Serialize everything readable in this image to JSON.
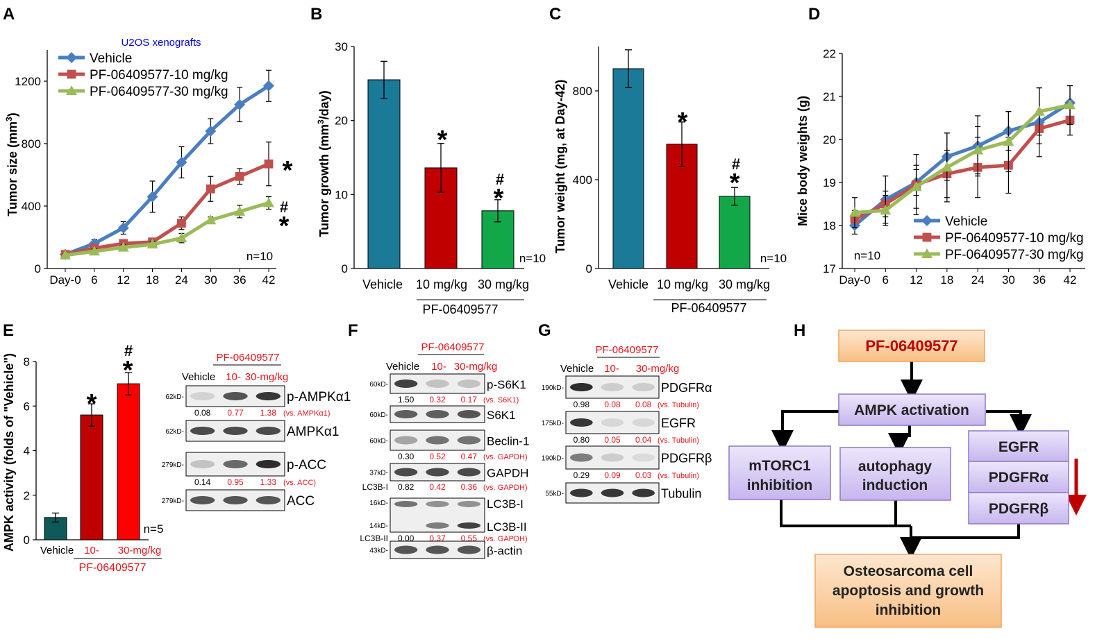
{
  "colors": {
    "vehicle": "#4a7ebf",
    "low": "#c0504d",
    "high": "#9bbb59",
    "bar_vehicle_b": "#1b7a98",
    "bar_low_b": "#c00000",
    "bar_high_b": "#12a84a",
    "bar_vehicle_e": "#0e5a58",
    "bar_low_e": "#c00000",
    "bar_high_e": "#ff0000",
    "purple_box": "#d6c8f2",
    "orange_box": "#fbd1a2",
    "red_text": "#e8141b"
  },
  "chart_data": [
    {
      "panel": "A",
      "type": "line",
      "title": "U2OS xenografts",
      "categories": [
        "Day-0",
        "6",
        "12",
        "18",
        "24",
        "30",
        "36",
        "42"
      ],
      "ylabel": "Tumor size (mm3)",
      "ylim": [
        0,
        1400
      ],
      "yticks": [
        "0",
        "400",
        "800",
        "1200"
      ],
      "series": [
        {
          "name": "Vehicle",
          "values": [
            90,
            160,
            260,
            460,
            680,
            880,
            1050,
            1170
          ],
          "errors": [
            10,
            25,
            40,
            100,
            100,
            80,
            110,
            100
          ]
        },
        {
          "name": "PF-06409577-10 mg/kg",
          "values": [
            90,
            130,
            160,
            170,
            290,
            510,
            590,
            670
          ],
          "errors": [
            10,
            20,
            20,
            20,
            40,
            80,
            50,
            140
          ]
        },
        {
          "name": "PF-06409577-30 mg/kg",
          "values": [
            85,
            110,
            135,
            155,
            195,
            310,
            365,
            420
          ],
          "errors": [
            10,
            15,
            20,
            20,
            30,
            20,
            40,
            40
          ]
        }
      ],
      "annotations": {
        "n": "n=10",
        "sig_low": "*",
        "sig_high_hash": "#",
        "sig_high_star": "*"
      }
    },
    {
      "panel": "B",
      "type": "bar",
      "categories": [
        "Vehicle",
        "10 mg/kg",
        "30 mg/kg"
      ],
      "values": [
        25.5,
        13.6,
        7.8
      ],
      "errors": [
        2.5,
        3.3,
        1.5
      ],
      "ylabel": "Tumor growth (mm3/day)",
      "ylim": [
        0,
        30
      ],
      "yticks": [
        "0",
        "10",
        "20",
        "30"
      ],
      "group_label": "PF-06409577",
      "annotations": {
        "n": "n=10",
        "sig_low": "*",
        "sig_high_star": "*",
        "sig_high_hash": "#"
      }
    },
    {
      "panel": "C",
      "type": "bar",
      "categories": [
        "Vehicle",
        "10 mg/kg",
        "30 mg/kg"
      ],
      "values": [
        900,
        560,
        325
      ],
      "errors": [
        85,
        100,
        40
      ],
      "ylabel": "Tumor weight (mg, at Day-42)",
      "ylim": [
        0,
        1000
      ],
      "yticks": [
        "0",
        "400",
        "800"
      ],
      "group_label": "PF-06409577",
      "annotations": {
        "n": "n=10",
        "sig_low": "*",
        "sig_high_star": "*",
        "sig_high_hash": "#"
      }
    },
    {
      "panel": "D",
      "type": "line",
      "categories": [
        "Day-0",
        "6",
        "12",
        "18",
        "24",
        "30",
        "36",
        "42"
      ],
      "ylabel": "Mice body weights (g)",
      "ylim": [
        17,
        22
      ],
      "yticks": [
        "17",
        "18",
        "19",
        "20",
        "21",
        "22"
      ],
      "series": [
        {
          "name": "Vehicle",
          "values": [
            18.0,
            18.6,
            19.0,
            19.6,
            19.85,
            20.2,
            20.4,
            20.85
          ],
          "errors": [
            0.2,
            0.55,
            0.3,
            0.55,
            0.7,
            0.45,
            0.8,
            0.4
          ]
        },
        {
          "name": "PF-06409577-10 mg/kg",
          "values": [
            18.15,
            18.5,
            18.95,
            19.2,
            19.35,
            19.4,
            20.25,
            20.45
          ],
          "errors": [
            0.2,
            0.3,
            0.7,
            0.55,
            0.7,
            0.65,
            0.35,
            0.35
          ]
        },
        {
          "name": "PF-06409577-30 mg/kg",
          "values": [
            18.3,
            18.35,
            18.9,
            19.35,
            19.75,
            19.95,
            20.65,
            20.8
          ],
          "errors": [
            0.35,
            0.35,
            0.5,
            0.8,
            0.55,
            0.7,
            0.55,
            0.45
          ]
        }
      ],
      "annotations": {
        "n": "n=10"
      }
    },
    {
      "panel": "E",
      "type": "bar",
      "categories": [
        "Vehicle",
        "10-",
        "30-mg/kg"
      ],
      "values": [
        1.0,
        5.6,
        7.0
      ],
      "errors": [
        0.2,
        0.5,
        0.5
      ],
      "ylabel": "AMPK activity (folds of \"Vehicle\")",
      "ylim": [
        0,
        8
      ],
      "yticks": [
        "0",
        "2",
        "4",
        "6",
        "8"
      ],
      "group_label": "PF-06409577",
      "annotations": {
        "n": "n=5",
        "sig_low": "*",
        "sig_high_star": "*",
        "sig_high_hash": "#"
      }
    }
  ],
  "panels": {
    "A": "A",
    "B": "B",
    "C": "C",
    "D": "D",
    "E": "E",
    "F": "F",
    "G": "G",
    "H": "H"
  },
  "blots": {
    "E": {
      "drug": "PF-06409577",
      "lanes": [
        "Vehicle",
        "10-",
        "30-mg/kg"
      ],
      "rows": [
        {
          "kd": "62kD-",
          "label": "p-AMPKα1",
          "intensity": [
            0.12,
            0.75,
            0.9
          ],
          "quant": [
            "0.08",
            "0.77",
            "1.38"
          ],
          "ref": "(vs. AMPKα1)"
        },
        {
          "kd": "62kD-",
          "label": "AMPKα1",
          "intensity": [
            0.8,
            0.8,
            0.8
          ]
        },
        {
          "kd": "279kD-",
          "label": "p-ACC",
          "intensity": [
            0.2,
            0.65,
            0.95
          ],
          "quant": [
            "0.14",
            "0.95",
            "1.33"
          ],
          "ref": "(vs. ACC)"
        },
        {
          "kd": "279kD-",
          "label": "ACC",
          "intensity": [
            0.75,
            0.75,
            0.75
          ]
        }
      ]
    },
    "F": {
      "drug": "PF-06409577",
      "lanes": [
        "Vehicle",
        "10-",
        "30-mg/kg"
      ],
      "rows": [
        {
          "kd": "60kD-",
          "label": "p-S6K1",
          "intensity": [
            0.85,
            0.2,
            0.2
          ],
          "quant": [
            "1.50",
            "0.32",
            "0.17"
          ],
          "ref": "(vs. S6K1)"
        },
        {
          "kd": "60kD-",
          "label": "S6K1",
          "intensity": [
            0.7,
            0.7,
            0.75
          ]
        },
        {
          "kd": "60kD-",
          "label": "Beclin-1",
          "intensity": [
            0.35,
            0.6,
            0.6
          ],
          "quant": [
            "0.30",
            "0.52",
            "0.47"
          ],
          "ref": "(vs. GAPDH)"
        },
        {
          "kd": "37kD-",
          "label": "GAPDH",
          "intensity": [
            0.8,
            0.8,
            0.8
          ],
          "quant_prefix": "LC3B-I",
          "quant": [
            "0.82",
            "0.42",
            "0.36"
          ],
          "ref": "(vs. GAPDH)"
        },
        {
          "kd": "16kD-",
          "kd2": "14kD-",
          "label": "LC3B-I",
          "label2": "LC3B-II",
          "intensity": [
            0.6,
            0.45,
            0.45
          ],
          "intensity2": [
            0.0,
            0.55,
            0.85
          ],
          "quant_prefix": "LC3B-II",
          "quant": [
            "0.00",
            "0.37",
            "0.55"
          ],
          "ref": "(vs. GAPDH)"
        },
        {
          "kd": "43kD-",
          "label": "β-actin",
          "intensity": [
            0.75,
            0.75,
            0.75
          ]
        }
      ]
    },
    "G": {
      "drug": "PF-06409577",
      "lanes": [
        "Vehicle",
        "10-",
        "30-mg/kg"
      ],
      "rows": [
        {
          "kd": "190kD-",
          "label": "PDGFRα",
          "intensity": [
            0.95,
            0.15,
            0.15
          ],
          "quant": [
            "0.98",
            "0.08",
            "0.08"
          ],
          "ref": "(vs. Tubulin)"
        },
        {
          "kd": "175kD-",
          "label": "EGFR",
          "intensity": [
            0.9,
            0.1,
            0.1
          ],
          "quant": [
            "0.80",
            "0.05",
            "0.04"
          ],
          "ref": "(vs. Tubulin)"
        },
        {
          "kd": "190kD-",
          "label": "PDGFRβ",
          "intensity": [
            0.55,
            0.15,
            0.08
          ],
          "quant": [
            "0.29",
            "0.09",
            "0.03"
          ],
          "ref": "(vs. Tubulin)"
        },
        {
          "kd": "55kD-",
          "label": "Tubulin",
          "intensity": [
            0.9,
            0.9,
            0.9
          ]
        }
      ]
    }
  },
  "diagram": {
    "drug": "PF-06409577",
    "ampk": "AMPK activation",
    "mtorc1_line1": "mTORC1",
    "mtorc1_line2": "inhibition",
    "autophagy_line1": "autophagy",
    "autophagy_line2": "induction",
    "rtk": [
      "EGFR",
      "PDGFRα",
      "PDGFRβ"
    ],
    "outcome_line1": "Osteosarcoma cell",
    "outcome_line2": "apoptosis and growth",
    "outcome_line3": "inhibition"
  }
}
